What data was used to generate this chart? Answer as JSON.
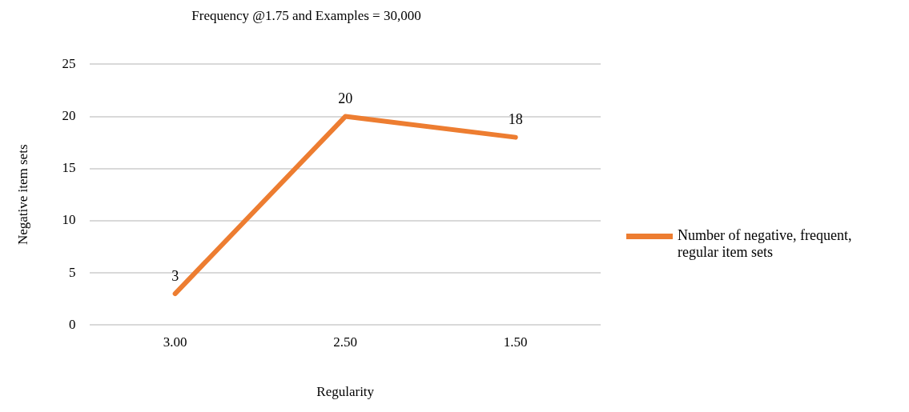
{
  "chart_data": {
    "type": "line",
    "title": "Frequency @1.75 and Examples = 30,000",
    "xlabel": "Regularity",
    "ylabel": "Negative item sets",
    "categories": [
      "3.00",
      "2.50",
      "1.50"
    ],
    "series": [
      {
        "name": "Number of negative, frequent, regular item sets",
        "color": "#ed7d31",
        "values": [
          3,
          20,
          18
        ]
      }
    ],
    "ylim": [
      0,
      25
    ],
    "yticks": [
      0,
      5,
      10,
      15,
      20,
      25
    ],
    "grid": "y",
    "legend": "right",
    "marker": "none",
    "line_style": "solid",
    "data_labels": true
  }
}
